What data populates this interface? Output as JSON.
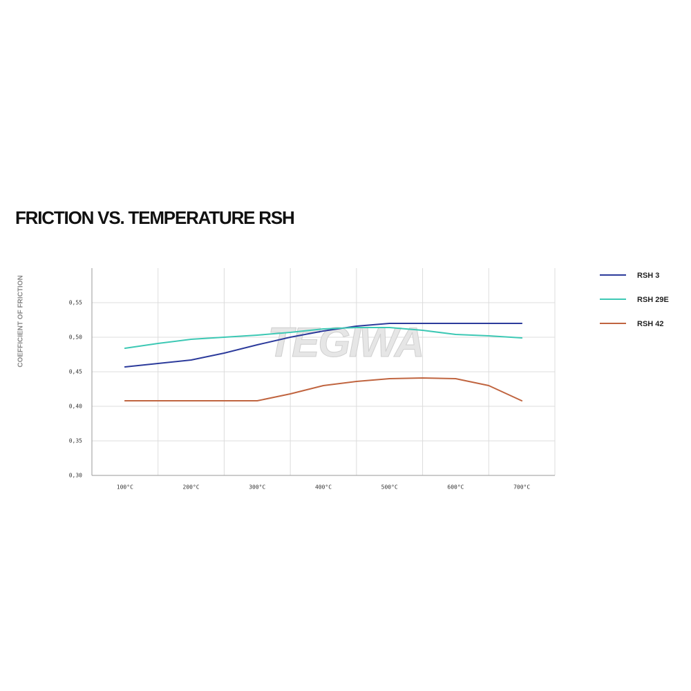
{
  "chart_data": {
    "type": "line",
    "title": "FRICTION VS. TEMPERATURE RSH",
    "y_label": "COEFFICIENT OF FRICTION",
    "watermark": "TEGIWA",
    "x": [
      100,
      150,
      200,
      250,
      300,
      350,
      400,
      450,
      500,
      550,
      600,
      650,
      700
    ],
    "xlim": [
      50,
      750
    ],
    "xticks": [
      {
        "value": 100,
        "label": "100°C"
      },
      {
        "value": 200,
        "label": "200°C"
      },
      {
        "value": 300,
        "label": "300°C"
      },
      {
        "value": 400,
        "label": "400°C"
      },
      {
        "value": 500,
        "label": "500°C"
      },
      {
        "value": 600,
        "label": "600°C"
      },
      {
        "value": 700,
        "label": "700°C"
      }
    ],
    "ylim": [
      0.3,
      0.6
    ],
    "yticks": [
      {
        "value": 0.3,
        "label": "0,30"
      },
      {
        "value": 0.35,
        "label": "0,35"
      },
      {
        "value": 0.4,
        "label": "0,40"
      },
      {
        "value": 0.45,
        "label": "0,45"
      },
      {
        "value": 0.5,
        "label": "0,50"
      },
      {
        "value": 0.55,
        "label": "0,55"
      }
    ],
    "grid": true,
    "legend": "right",
    "series": [
      {
        "name": "RSH 3",
        "color": "#2b3a9b",
        "values": [
          0.457,
          0.462,
          0.467,
          0.477,
          0.489,
          0.5,
          0.509,
          0.516,
          0.52,
          0.52,
          0.52,
          0.52,
          0.52
        ]
      },
      {
        "name": "RSH 29E",
        "color": "#3cc8b4",
        "values": [
          0.484,
          0.491,
          0.497,
          0.5,
          0.503,
          0.507,
          0.512,
          0.514,
          0.514,
          0.51,
          0.504,
          0.502,
          0.499
        ]
      },
      {
        "name": "RSH 42",
        "color": "#c0643f",
        "values": [
          0.408,
          0.408,
          0.408,
          0.408,
          0.408,
          0.418,
          0.43,
          0.436,
          0.44,
          0.441,
          0.44,
          0.43,
          0.408
        ]
      }
    ]
  }
}
